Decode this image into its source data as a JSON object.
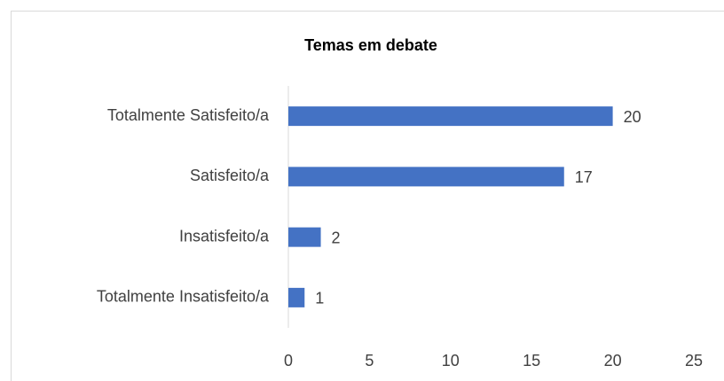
{
  "chart_data": {
    "type": "bar",
    "orientation": "horizontal",
    "title": "Temas em debate",
    "categories": [
      "Totalmente Satisfeito/a",
      "Satisfeito/a",
      "Insatisfeito/a",
      "Totalmente Insatisfeito/a"
    ],
    "values": [
      20,
      17,
      2,
      1
    ],
    "color": "#4472c4",
    "xlim": [
      0,
      25
    ],
    "xticks": [
      0,
      5,
      10,
      15,
      20,
      25
    ],
    "grid": false
  }
}
